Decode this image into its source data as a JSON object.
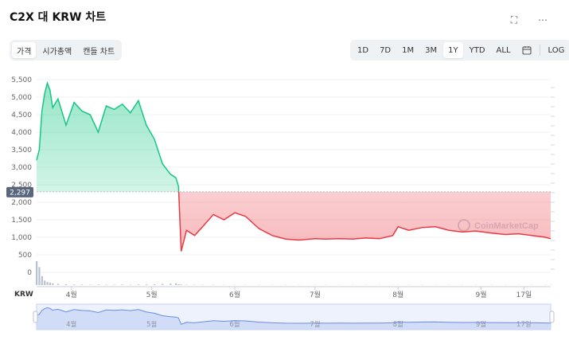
{
  "title": "C2X 대 KRW 차트",
  "actions": [
    {
      "name": "fullscreen-icon",
      "glyph": "⛶"
    },
    {
      "name": "more-icon",
      "glyph": "⋯"
    }
  ],
  "view_tabs": [
    "가격",
    "시가총액",
    "캔들 차트"
  ],
  "active_view": 0,
  "range_tabs": [
    "1D",
    "7D",
    "1M",
    "3M",
    "1Y",
    "YTD",
    "ALL"
  ],
  "active_range": 4,
  "calendar_icon": "calendar-icon",
  "log_label": "LOG",
  "currency_label": "KRW",
  "current_price_tag": "2,297",
  "watermark": "CoinMarketCap",
  "colors": {
    "up": "#16c784",
    "down": "#ea3943",
    "nav": "#6b8ce8",
    "volume": "#b9c1d1"
  },
  "chart_data": {
    "type": "area",
    "ylim": [
      0,
      5500
    ],
    "y_ticks": [
      "5,500",
      "5,000",
      "4,500",
      "4,000",
      "3,500",
      "3,000",
      "2,500",
      "2,000",
      "1,500",
      "1,000",
      "500",
      "0"
    ],
    "x_ticks": [
      "4월",
      "5월",
      "6월",
      "7월",
      "8월",
      "9월",
      "17일"
    ],
    "baseline": 2297,
    "x": [
      "03-19",
      "03-20",
      "03-21",
      "03-22",
      "03-23",
      "03-24",
      "03-25",
      "03-27",
      "03-30",
      "04-02",
      "04-05",
      "04-08",
      "04-11",
      "04-14",
      "04-17",
      "04-20",
      "04-23",
      "04-26",
      "04-29",
      "05-02",
      "05-05",
      "05-08",
      "05-10",
      "05-11",
      "05-12",
      "05-14",
      "05-17",
      "05-20",
      "05-24",
      "05-28",
      "06-01",
      "06-05",
      "06-10",
      "06-15",
      "06-20",
      "06-25",
      "07-01",
      "07-05",
      "07-10",
      "07-15",
      "07-20",
      "07-25",
      "07-30",
      "08-01",
      "08-05",
      "08-10",
      "08-15",
      "08-20",
      "08-25",
      "08-30",
      "09-05",
      "09-10",
      "09-15",
      "09-20",
      "09-25",
      "09-27"
    ],
    "values": [
      3200,
      3500,
      4600,
      5100,
      5400,
      5200,
      4700,
      4950,
      4200,
      4850,
      4600,
      4500,
      4000,
      4750,
      4650,
      4800,
      4550,
      4900,
      4200,
      3800,
      3100,
      2800,
      2700,
      2450,
      600,
      1200,
      1050,
      1300,
      1650,
      1500,
      1700,
      1600,
      1250,
      1050,
      950,
      920,
      960,
      950,
      960,
      950,
      980,
      960,
      1050,
      1300,
      1200,
      1280,
      1300,
      1200,
      1150,
      1180,
      1120,
      1080,
      1100,
      1050,
      1000,
      960
    ],
    "volume": [
      800,
      600,
      300,
      150,
      100,
      80,
      60,
      40,
      30,
      25,
      20,
      15,
      20,
      15,
      15,
      20,
      15,
      20,
      25,
      30,
      40,
      50,
      60,
      30,
      20,
      15,
      12,
      10,
      10,
      8,
      8,
      8,
      8,
      8,
      8,
      8,
      8,
      8,
      8,
      8,
      8,
      8,
      8,
      8,
      8,
      8,
      8,
      8,
      8,
      8,
      8,
      8,
      8,
      8,
      8,
      8
    ]
  }
}
